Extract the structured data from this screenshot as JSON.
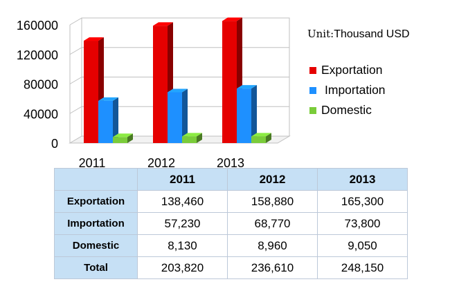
{
  "chart_data": {
    "type": "bar",
    "categories": [
      "2011",
      "2012",
      "2013"
    ],
    "series": [
      {
        "name": "Exportation",
        "values": [
          138460,
          158880,
          165300
        ],
        "color": "#e50000"
      },
      {
        "name": "Importation",
        "values": [
          57230,
          68770,
          73800
        ],
        "color": "#1e90ff"
      },
      {
        "name": "Domestic",
        "values": [
          8130,
          8960,
          9050
        ],
        "color": "#7acc3a"
      }
    ],
    "yticks": [
      "0",
      "40000",
      "80000",
      "120000",
      "160000"
    ],
    "ylim": [
      0,
      160000
    ],
    "three_d": true,
    "grid": true,
    "legend_position": "right"
  },
  "unit": {
    "prefix": "Unit:",
    "text": "Thousand USD"
  },
  "table": {
    "headers": [
      "",
      "2011",
      "2012",
      "2013"
    ],
    "rows": [
      {
        "label": "Exportation",
        "values": [
          "138,460",
          "158,880",
          "165,300"
        ]
      },
      {
        "label": "Importation",
        "values": [
          "57,230",
          "68,770",
          "73,800"
        ]
      },
      {
        "label": "Domestic",
        "values": [
          "8,130",
          "8,960",
          "9,050"
        ]
      },
      {
        "label": "Total",
        "values": [
          "203,820",
          "236,610",
          "248,150"
        ]
      }
    ]
  }
}
